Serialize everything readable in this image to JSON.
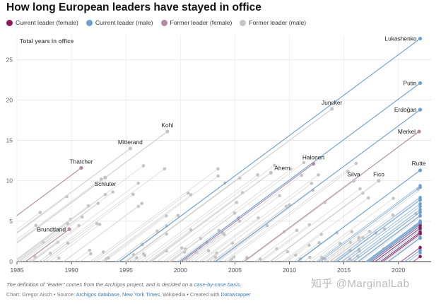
{
  "header": {
    "title": "How long European leaders have stayed in office"
  },
  "legend": [
    {
      "label": "Current leader (female)",
      "color": "#8e1a5a"
    },
    {
      "label": "Current leader (male)",
      "color": "#6a9fd0"
    },
    {
      "label": "Former leader (female)",
      "color": "#b48aa3"
    },
    {
      "label": "Former leader (male)",
      "color": "#c4c4c4"
    }
  ],
  "chart_data": {
    "type": "scatter",
    "title": "How long European leaders have stayed in office",
    "ylabel": "Total years in office",
    "xlim": [
      1985,
      2023
    ],
    "ylim": [
      0,
      28
    ],
    "x_ticks": [
      1985,
      1990,
      1995,
      2000,
      2005,
      2010,
      2015,
      2020
    ],
    "y_ticks": [
      0,
      5,
      10,
      15,
      20,
      25
    ],
    "labeled_leaders": [
      {
        "name": "Lukashenko",
        "year": 2022,
        "years": 27.6,
        "category": "current-male"
      },
      {
        "name": "Putin",
        "year": 2022,
        "years": 22.1,
        "category": "current-male"
      },
      {
        "name": "Erdoğan",
        "year": 2022,
        "years": 18.8,
        "category": "current-male"
      },
      {
        "name": "Merkel",
        "year": 2021.9,
        "years": 16.1,
        "category": "former-female"
      },
      {
        "name": "Rutte",
        "year": 2022,
        "years": 11.3,
        "category": "current-male"
      },
      {
        "name": "Juncker",
        "year": 2013.9,
        "years": 18.9,
        "category": "former-male"
      },
      {
        "name": "Halonen",
        "year": 2012.2,
        "years": 12.1,
        "category": "former-female"
      },
      {
        "name": "Silva",
        "year": 2015.9,
        "years": 10.0,
        "category": "former-male"
      },
      {
        "name": "Fico",
        "year": 2018.2,
        "years": 10.0,
        "category": "former-male"
      },
      {
        "name": "Ahern",
        "year": 2008.3,
        "years": 11.0,
        "category": "former-male"
      },
      {
        "name": "Kohl",
        "year": 1998.8,
        "years": 16.1,
        "category": "former-male"
      },
      {
        "name": "Mitterand",
        "year": 1995.4,
        "years": 14.0,
        "category": "former-male"
      },
      {
        "name": "Thatcher",
        "year": 1990.9,
        "years": 11.6,
        "category": "former-female"
      },
      {
        "name": "Schluter",
        "year": 1993.1,
        "years": 10.4,
        "category": "former-male"
      },
      {
        "name": "Brundtland",
        "year": 1989.8,
        "years": 4.0,
        "category": "former-female"
      }
    ]
  },
  "footer": {
    "note_prefix": "The definition of \"leader\" comes from the Archigos project, and is decided on a ",
    "note_link": "case-by-case basis",
    "note_suffix": ".",
    "credit_1": "Chart: Gregor Aisch • Source: ",
    "credit_link_1": "Archigos database",
    "credit_2": ", ",
    "credit_link_2": "New York Times",
    "credit_3": ", Wikipedia • Created with ",
    "credit_link_3": "Datawrapper"
  },
  "watermark": "知乎 @MarginalLab"
}
